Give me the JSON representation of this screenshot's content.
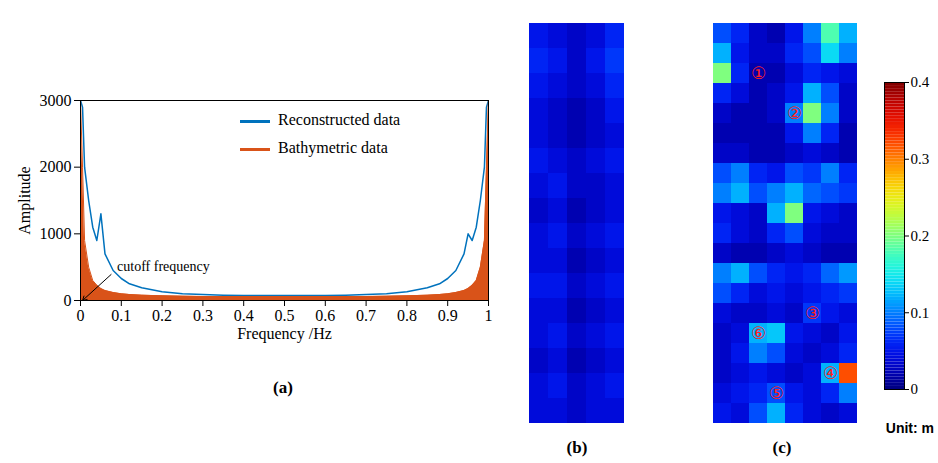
{
  "chart_data": [
    {
      "type": "line",
      "panel": "(a)",
      "x_label": "Frequency /Hz",
      "y_label": "Amplitude",
      "x": [
        0,
        0.005,
        0.01,
        0.02,
        0.03,
        0.04,
        0.05,
        0.06,
        0.08,
        0.1,
        0.12,
        0.15,
        0.2,
        0.25,
        0.3,
        0.35,
        0.4,
        0.45,
        0.5,
        0.55,
        0.6,
        0.65,
        0.7,
        0.75,
        0.8,
        0.85,
        0.88,
        0.9,
        0.92,
        0.94,
        0.95,
        0.96,
        0.97,
        0.98,
        0.99,
        0.995,
        1
      ],
      "series": [
        {
          "name": "Reconstructed data",
          "color": "#0072bd",
          "type": "line",
          "values": [
            3000,
            2900,
            2000,
            1500,
            1100,
            900,
            1300,
            700,
            450,
            330,
            250,
            190,
            130,
            100,
            90,
            80,
            75,
            75,
            75,
            75,
            75,
            80,
            90,
            100,
            130,
            190,
            250,
            330,
            450,
            700,
            1000,
            900,
            1100,
            1500,
            2000,
            2900,
            3000
          ]
        },
        {
          "name": "Bathymetric data",
          "color": "#d95319",
          "type": "area",
          "values": [
            3000,
            2000,
            900,
            500,
            300,
            230,
            180,
            150,
            120,
            100,
            90,
            80,
            70,
            65,
            60,
            60,
            60,
            60,
            60,
            60,
            60,
            60,
            60,
            65,
            70,
            80,
            90,
            100,
            120,
            150,
            180,
            230,
            300,
            500,
            900,
            2000,
            3000
          ]
        }
      ],
      "xlim": [
        0,
        1
      ],
      "xticks": [
        0,
        0.1,
        0.2,
        0.3,
        0.4,
        0.5,
        0.6,
        0.7,
        0.8,
        0.9,
        1
      ],
      "ylim": [
        0,
        3000
      ],
      "yticks": [
        0,
        1000,
        2000,
        3000
      ],
      "legend": "top-right",
      "annotations": [
        {
          "text": "cutoff frequency",
          "x": 0.005,
          "y": 0
        }
      ]
    },
    {
      "type": "heatmap",
      "panel": "(b)",
      "colorbar": {
        "range": [
          0,
          0.4
        ],
        "ticks": [
          0,
          0.1,
          0.2,
          0.3,
          0.4
        ]
      },
      "cells": [
        [
          0.05,
          0.04,
          0.03,
          0.04,
          0.06
        ],
        [
          0.06,
          0.05,
          0.03,
          0.05,
          0.07
        ],
        [
          0.05,
          0.04,
          0.03,
          0.04,
          0.06
        ],
        [
          0.04,
          0.03,
          0.02,
          0.03,
          0.05
        ],
        [
          0.04,
          0.03,
          0.02,
          0.03,
          0.04
        ],
        [
          0.05,
          0.04,
          0.03,
          0.04,
          0.05
        ],
        [
          0.04,
          0.05,
          0.03,
          0.03,
          0.04
        ],
        [
          0.03,
          0.04,
          0.02,
          0.03,
          0.04
        ],
        [
          0.04,
          0.05,
          0.03,
          0.04,
          0.05
        ],
        [
          0.04,
          0.04,
          0.02,
          0.03,
          0.04
        ],
        [
          0.05,
          0.05,
          0.03,
          0.04,
          0.05
        ],
        [
          0.04,
          0.04,
          0.02,
          0.03,
          0.04
        ],
        [
          0.04,
          0.05,
          0.03,
          0.04,
          0.05
        ],
        [
          0.03,
          0.04,
          0.02,
          0.03,
          0.04
        ],
        [
          0.04,
          0.05,
          0.03,
          0.04,
          0.05
        ],
        [
          0.04,
          0.04,
          0.03,
          0.04,
          0.04
        ]
      ]
    },
    {
      "type": "heatmap",
      "panel": "(c)",
      "colorbar": {
        "range": [
          0,
          0.4
        ],
        "ticks": [
          0,
          0.1,
          0.2,
          0.3,
          0.4
        ],
        "label": "Unit: m"
      },
      "cells": [
        [
          0.08,
          0.06,
          0.03,
          0.02,
          0.05,
          0.1,
          0.18,
          0.12
        ],
        [
          0.12,
          0.05,
          0.03,
          0.03,
          0.06,
          0.08,
          0.14,
          0.1
        ],
        [
          0.2,
          0.06,
          0.02,
          0.02,
          0.04,
          0.06,
          0.05,
          0.04
        ],
        [
          0.06,
          0.04,
          0.02,
          0.03,
          0.05,
          0.12,
          0.08,
          0.03
        ],
        [
          0.03,
          0.02,
          0.02,
          0.03,
          0.1,
          0.2,
          0.1,
          0.03
        ],
        [
          0.02,
          0.02,
          0.02,
          0.02,
          0.05,
          0.1,
          0.06,
          0.02
        ],
        [
          0.03,
          0.03,
          0.02,
          0.02,
          0.03,
          0.04,
          0.03,
          0.02
        ],
        [
          0.08,
          0.1,
          0.06,
          0.05,
          0.08,
          0.07,
          0.1,
          0.06
        ],
        [
          0.1,
          0.12,
          0.08,
          0.1,
          0.12,
          0.09,
          0.08,
          0.07
        ],
        [
          0.05,
          0.04,
          0.03,
          0.12,
          0.2,
          0.05,
          0.04,
          0.03
        ],
        [
          0.06,
          0.04,
          0.03,
          0.06,
          0.08,
          0.04,
          0.03,
          0.03
        ],
        [
          0.03,
          0.02,
          0.02,
          0.03,
          0.04,
          0.03,
          0.02,
          0.02
        ],
        [
          0.1,
          0.12,
          0.08,
          0.06,
          0.05,
          0.06,
          0.09,
          0.11
        ],
        [
          0.08,
          0.06,
          0.04,
          0.05,
          0.04,
          0.05,
          0.06,
          0.07
        ],
        [
          0.04,
          0.03,
          0.03,
          0.04,
          0.03,
          0.07,
          0.05,
          0.04
        ],
        [
          0.03,
          0.04,
          0.12,
          0.13,
          0.05,
          0.04,
          0.03,
          0.05
        ],
        [
          0.03,
          0.05,
          0.1,
          0.08,
          0.04,
          0.03,
          0.04,
          0.06
        ],
        [
          0.03,
          0.04,
          0.05,
          0.04,
          0.03,
          0.04,
          0.12,
          0.32
        ],
        [
          0.04,
          0.05,
          0.06,
          0.08,
          0.05,
          0.04,
          0.06,
          0.1
        ],
        [
          0.05,
          0.04,
          0.08,
          0.12,
          0.06,
          0.04,
          0.03,
          0.04
        ]
      ],
      "annotations": [
        {
          "text": "①",
          "col": 2,
          "row": 2
        },
        {
          "text": "②",
          "col": 4,
          "row": 4
        },
        {
          "text": "③",
          "col": 5,
          "row": 14
        },
        {
          "text": "④",
          "col": 6,
          "row": 17
        },
        {
          "text": "⑤",
          "col": 3,
          "row": 18
        },
        {
          "text": "⑥",
          "col": 2,
          "row": 15
        }
      ]
    }
  ]
}
